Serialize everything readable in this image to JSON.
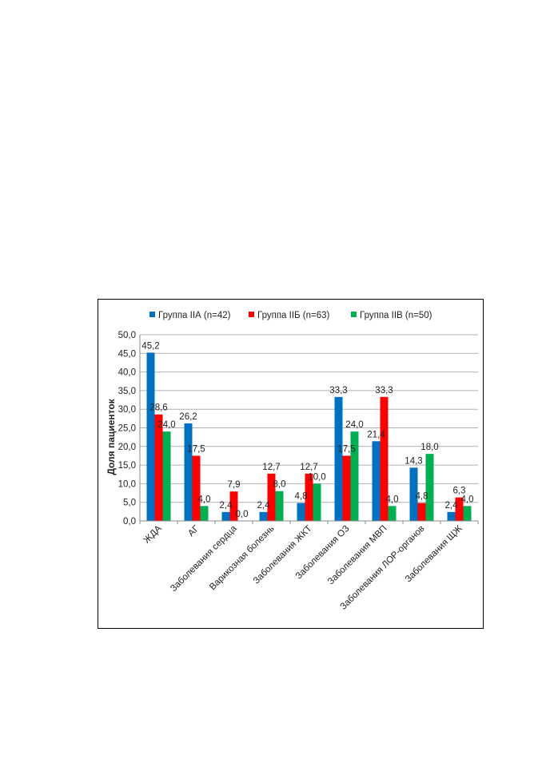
{
  "chart_data": {
    "type": "bar",
    "categories": [
      "ЖДА",
      "АГ",
      "Заболевания сердца",
      "Варикозная болезнь",
      "Заболевания ЖКТ",
      "Заболевания ОЗ",
      "Заболевания МВП",
      "Заболевания ЛОР-органов",
      "Заболевания ЩЖ"
    ],
    "series": [
      {
        "name": "Группа IIА (n=42)",
        "color": "#0070c0",
        "values": [
          45.2,
          26.2,
          2.4,
          2.4,
          4.8,
          33.3,
          21.4,
          14.3,
          2.4
        ],
        "labels": [
          "45,2",
          "26,2",
          "2,4",
          "2,4",
          "4,8",
          "33,3",
          "21,4",
          "14,3",
          "2,4"
        ]
      },
      {
        "name": "Группа IIБ (n=63)",
        "color": "#ff0000",
        "values": [
          28.6,
          17.5,
          7.9,
          12.7,
          12.7,
          17.5,
          33.3,
          4.8,
          6.3
        ],
        "labels": [
          "28,6",
          "17,5",
          "7,9",
          "12,7",
          "12,7",
          "17,5",
          "33,3",
          "4,8",
          "6,3"
        ]
      },
      {
        "name": "Группа IIВ (n=50)",
        "color": "#00b050",
        "values": [
          24.0,
          4.0,
          0.0,
          8.0,
          10.0,
          24.0,
          4.0,
          18.0,
          4.0
        ],
        "labels": [
          "24,0",
          "4,0",
          "0,0",
          "8,0",
          "10,0",
          "24,0",
          "4,0",
          "18,0",
          "4,0"
        ]
      }
    ],
    "ylabel": "Доля пациенток",
    "ylim": [
      0,
      50
    ],
    "yticks": [
      "0,0",
      "5,0",
      "10,0",
      "15,0",
      "20,0",
      "25,0",
      "30,0",
      "35,0",
      "40,0",
      "45,0",
      "50,0"
    ],
    "grid": true,
    "legend_position": "top"
  }
}
